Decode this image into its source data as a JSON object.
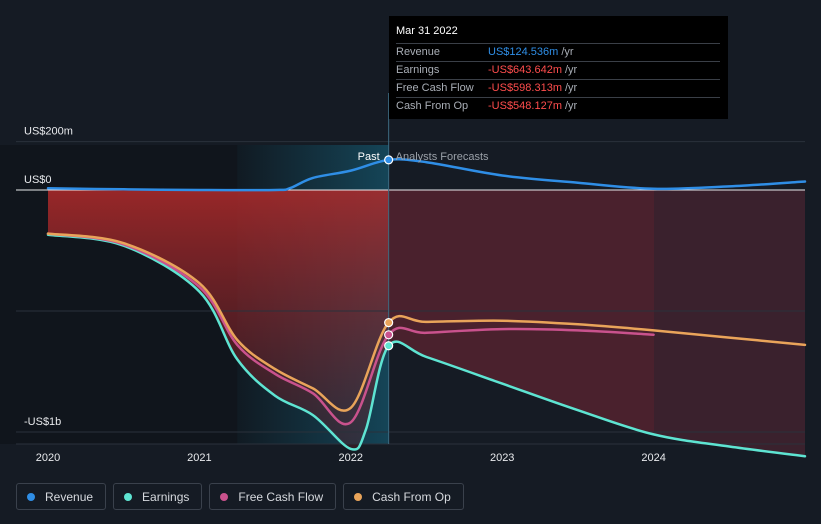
{
  "chart_data": {
    "type": "line",
    "title": "",
    "x_unit": "year",
    "xlim": [
      2020,
      2025.0
    ],
    "ylim": [
      -1100,
      200
    ],
    "y_axis_labels": [
      {
        "value": 200,
        "label": "US$200m"
      },
      {
        "value": 0,
        "label": "US$0"
      },
      {
        "value": -1000,
        "label": "-US$1b"
      }
    ],
    "x_ticks": [
      {
        "value": 2020,
        "label": "2020"
      },
      {
        "value": 2021,
        "label": "2021"
      },
      {
        "value": 2022,
        "label": "2022"
      },
      {
        "value": 2023,
        "label": "2023"
      },
      {
        "value": 2024,
        "label": "2024"
      }
    ],
    "divider_x": 2022.25,
    "past_label": "Past",
    "forecast_label": "Analysts Forecasts",
    "series": [
      {
        "name": "Revenue",
        "color": "#2f8ee6",
        "points": [
          [
            2020,
            7
          ],
          [
            2020.5,
            3
          ],
          [
            2021,
            0
          ],
          [
            2021.5,
            0
          ],
          [
            2021.6,
            8
          ],
          [
            2021.75,
            50
          ],
          [
            2022,
            80
          ],
          [
            2022.25,
            124.5
          ],
          [
            2022.5,
            115
          ],
          [
            2023,
            60
          ],
          [
            2023.5,
            30
          ],
          [
            2024,
            5
          ],
          [
            2024.5,
            15
          ],
          [
            2025,
            35
          ]
        ]
      },
      {
        "name": "Earnings",
        "color": "#5ee4d2",
        "points": [
          [
            2020,
            -185
          ],
          [
            2020.5,
            -230
          ],
          [
            2021,
            -420
          ],
          [
            2021.25,
            -700
          ],
          [
            2021.5,
            -850
          ],
          [
            2021.75,
            -930
          ],
          [
            2022,
            -1070
          ],
          [
            2022.1,
            -990
          ],
          [
            2022.25,
            -643.6
          ],
          [
            2022.5,
            -690
          ],
          [
            2023,
            -800
          ],
          [
            2023.5,
            -910
          ],
          [
            2024,
            -1010
          ],
          [
            2024.5,
            -1060
          ],
          [
            2025,
            -1100
          ]
        ]
      },
      {
        "name": "Free Cash Flow",
        "color": "#c9528d",
        "points": [
          [
            2020,
            -180
          ],
          [
            2020.5,
            -225
          ],
          [
            2021,
            -400
          ],
          [
            2021.25,
            -640
          ],
          [
            2021.5,
            -760
          ],
          [
            2021.75,
            -840
          ],
          [
            2022,
            -960
          ],
          [
            2022.25,
            -598.3
          ],
          [
            2022.5,
            -590
          ],
          [
            2023,
            -575
          ],
          [
            2023.5,
            -580
          ],
          [
            2024,
            -598
          ]
        ]
      },
      {
        "name": "Cash From Op",
        "color": "#e9a45a",
        "points": [
          [
            2020,
            -180
          ],
          [
            2020.5,
            -220
          ],
          [
            2021,
            -385
          ],
          [
            2021.25,
            -620
          ],
          [
            2021.5,
            -740
          ],
          [
            2021.75,
            -820
          ],
          [
            2022,
            -900
          ],
          [
            2022.25,
            -548.1
          ],
          [
            2022.5,
            -545
          ],
          [
            2023,
            -540
          ],
          [
            2023.5,
            -555
          ],
          [
            2024,
            -580
          ],
          [
            2024.5,
            -610
          ],
          [
            2025,
            -640
          ]
        ]
      }
    ]
  },
  "tooltip": {
    "date": "Mar 31 2022",
    "rows": [
      {
        "label": "Revenue",
        "value": "US$124.536m",
        "unit": "/yr",
        "color": "#2f8ee6"
      },
      {
        "label": "Earnings",
        "value": "-US$643.642m",
        "unit": "/yr",
        "color": "#ff4d4d"
      },
      {
        "label": "Free Cash Flow",
        "value": "-US$598.313m",
        "unit": "/yr",
        "color": "#ff4d4d"
      },
      {
        "label": "Cash From Op",
        "value": "-US$548.127m",
        "unit": "/yr",
        "color": "#ff4d4d"
      }
    ]
  },
  "legend": [
    {
      "label": "Revenue",
      "color": "#2f8ee6"
    },
    {
      "label": "Earnings",
      "color": "#5ee4d2"
    },
    {
      "label": "Free Cash Flow",
      "color": "#c9528d"
    },
    {
      "label": "Cash From Op",
      "color": "#e9a45a"
    }
  ]
}
